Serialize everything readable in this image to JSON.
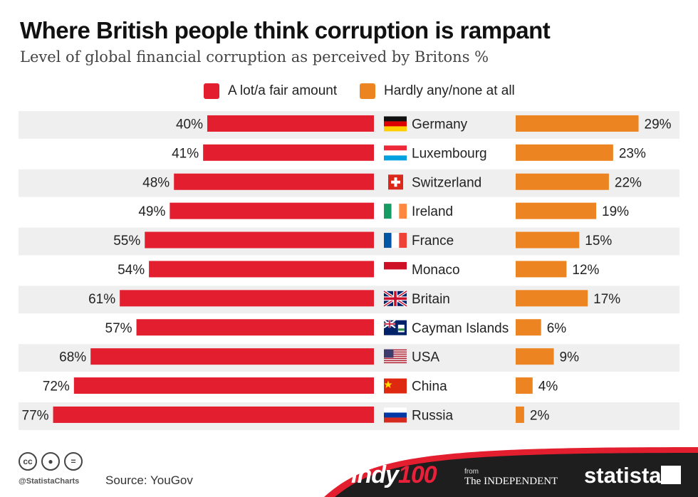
{
  "header": {
    "title": "Where British people think corruption is rampant",
    "subtitle": "Level of global financial corruption as perceived by Britons %"
  },
  "legend": {
    "left_label": "A lot/a fair amount",
    "right_label": "Hardly any/none at all"
  },
  "colors": {
    "left": "#e31e2f",
    "right": "#ec8422",
    "row_band": "#efefef",
    "footer_dark": "#1e1e1e",
    "footer_red": "#e31e2f"
  },
  "chart_data": {
    "type": "bar",
    "orientation": "horizontal-diverging",
    "categories": [
      "Germany",
      "Luxembourg",
      "Switzerland",
      "Ireland",
      "France",
      "Monaco",
      "Britain",
      "Cayman Islands",
      "USA",
      "China",
      "Russia"
    ],
    "series": [
      {
        "name": "A lot/a fair amount",
        "values": [
          40,
          41,
          48,
          49,
          55,
          54,
          61,
          57,
          68,
          72,
          77
        ]
      },
      {
        "name": "Hardly any/none at all",
        "values": [
          29,
          23,
          22,
          19,
          15,
          12,
          17,
          6,
          9,
          4,
          2
        ]
      }
    ],
    "value_suffix": "%",
    "flags": [
      "germany-flag",
      "luxembourg-flag",
      "switzerland-flag",
      "ireland-flag",
      "france-flag",
      "monaco-flag",
      "britain-flag",
      "cayman-islands-flag",
      "usa-flag",
      "china-flag",
      "russia-flag"
    ]
  },
  "footer": {
    "cc_icons": [
      "cc-icon",
      "by-icon",
      "nd-icon"
    ],
    "handle": "@StatistaCharts",
    "source": "Source: YouGov",
    "indy_part1": "indy",
    "indy_part2": "100",
    "from": "from",
    "independent": "The INDEPENDENT",
    "statista": "statista"
  }
}
